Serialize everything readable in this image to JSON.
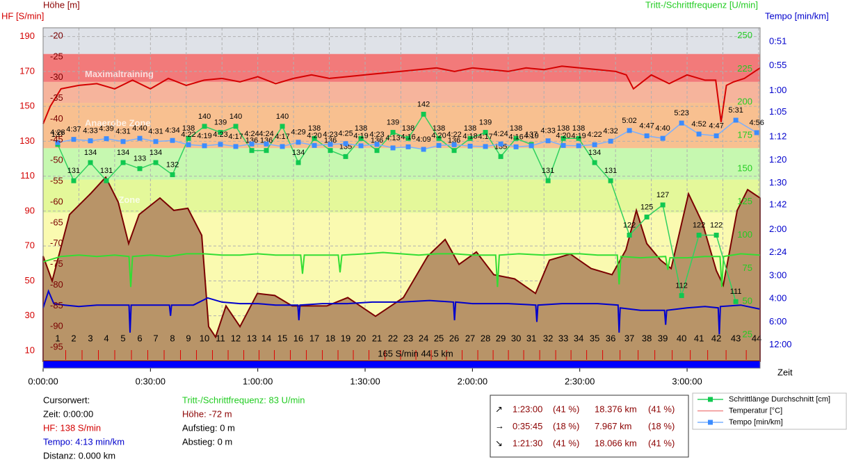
{
  "chart_data": {
    "type": "line",
    "xlabel": "Zeit",
    "xlim": [
      0,
      200.4
    ],
    "xticks": [
      {
        "value": 0,
        "label": "0:00:00"
      },
      {
        "value": 30,
        "label": "0:30:00"
      },
      {
        "value": 60,
        "label": "1:00:00"
      },
      {
        "value": 90,
        "label": "1:30:00"
      },
      {
        "value": 120,
        "label": "2:00:00"
      },
      {
        "value": 150,
        "label": "2:30:00"
      },
      {
        "value": 180,
        "label": "3:00:00"
      }
    ],
    "xgrid": [
      10,
      20,
      30,
      40,
      50,
      60,
      70,
      80,
      90,
      100,
      110,
      120,
      130,
      140,
      150,
      160,
      170,
      180,
      190,
      200
    ],
    "grid": true,
    "axes": {
      "hr": {
        "label": "HF [S/min]",
        "lim": [
          0,
          195
        ],
        "ticks": [
          10,
          30,
          50,
          70,
          90,
          110,
          130,
          150,
          170,
          190
        ],
        "color": "#d40000"
      },
      "elevation": {
        "label": "Höhe  [m]",
        "lim": [
          -100,
          -18
        ],
        "ticks": [
          -20,
          -25,
          -30,
          -35,
          -40,
          -45,
          -50,
          -55,
          -60,
          -65,
          -70,
          -75,
          -80,
          -85,
          -90,
          -95
        ],
        "color": "#7a0000"
      },
      "cadence": {
        "label": "Tritt-/Schrittfrequenz [U/min]",
        "lim": [
          0,
          256
        ],
        "ticks": [
          25,
          50,
          75,
          100,
          125,
          150,
          175,
          200,
          225,
          250
        ],
        "color": "#22cc22"
      },
      "pace": {
        "label": "Tempo [min/km]",
        "scale": "reciprocal",
        "top": 0.815,
        "color": "#0000cc",
        "ticks": [
          {
            "value": 0.85,
            "label": "0:51"
          },
          {
            "value": 0.9167,
            "label": "0:55"
          },
          {
            "value": 1,
            "label": "1:00"
          },
          {
            "value": 1.0833,
            "label": "1:05"
          },
          {
            "value": 1.2,
            "label": "1:12"
          },
          {
            "value": 1.3333,
            "label": "1:20"
          },
          {
            "value": 1.5,
            "label": "1:30"
          },
          {
            "value": 1.7,
            "label": "1:42"
          },
          {
            "value": 2,
            "label": "2:00"
          },
          {
            "value": 2.4,
            "label": "2:24"
          },
          {
            "value": 3,
            "label": "3:00"
          },
          {
            "value": 4,
            "label": "4:00"
          },
          {
            "value": 6,
            "label": "6:00"
          },
          {
            "value": 12,
            "label": "12:00"
          }
        ]
      }
    },
    "zones": [
      {
        "from": 180,
        "to": 195,
        "color": "#dfe2e8"
      },
      {
        "from": 164,
        "to": 180,
        "color": "#f27a7a",
        "name": "Maximaltraining"
      },
      {
        "from": 152,
        "to": 164,
        "color": "#f6b49c"
      },
      {
        "from": 126,
        "to": 152,
        "color": "#f8c090",
        "name": "Anaerobe Zone"
      },
      {
        "from": 108,
        "to": 126,
        "color": "#c6f8b0"
      },
      {
        "from": 89,
        "to": 108,
        "color": "#e4f89a",
        "name": "Aerobe Zone"
      },
      {
        "from": 0,
        "to": 89,
        "color": "#fafab0"
      }
    ],
    "series": [
      {
        "type": "area",
        "axis": "elevation",
        "color": "#b89468",
        "line": "#7a0000",
        "x": [
          0,
          2.53,
          7.39,
          13.22,
          17.5,
          21,
          23.91,
          26.83,
          32.66,
          36.55,
          40.44,
          44.33,
          46.27,
          48.21,
          51.13,
          55.02,
          59.88,
          64.74,
          69.6,
          79.32,
          85.15,
          92.92,
          100.7,
          107.5,
          112.36,
          116.25,
          121.11,
          125.97,
          131.81,
          137.64,
          141.52,
          147.36,
          153.19,
          159.02,
          162.91,
          165.82,
          168.74,
          172.63,
          175.54,
          180.4,
          184.29,
          188.18,
          190.12,
          194.01,
          196.93,
          200.4
        ],
        "values": [
          -73,
          -79,
          -63,
          -58,
          -54,
          -60,
          -70,
          -63,
          -59,
          -62,
          -61.5,
          -68,
          -90,
          -92.5,
          -85,
          -90,
          -82,
          -82.5,
          -85,
          -85,
          -83,
          -87.5,
          -83,
          -73,
          -69,
          -75,
          -72,
          -77.5,
          -78.5,
          -82,
          -74,
          -72.5,
          -76,
          -77.5,
          -71.5,
          -62,
          -70,
          -74,
          -76,
          -58,
          -65,
          -76.5,
          -80,
          -62,
          -57,
          -59
        ]
      },
      {
        "type": "line",
        "axis": "hr",
        "color": "#d40000",
        "x": [
          0,
          2,
          5,
          10,
          15,
          20,
          25,
          30,
          35,
          40,
          45,
          50,
          55,
          60,
          65,
          70,
          75,
          80,
          85,
          90,
          95,
          100,
          105,
          110,
          115,
          120,
          125,
          130,
          135,
          140,
          145,
          150,
          155,
          160,
          163,
          165,
          170,
          175,
          180,
          185,
          188,
          189.5,
          191,
          193,
          196,
          200.4
        ],
        "values": [
          140,
          150,
          160,
          162,
          163,
          160,
          165,
          160,
          166,
          162,
          165,
          166,
          164,
          167,
          163,
          166,
          168,
          166,
          167,
          168,
          169,
          170,
          171,
          172,
          170,
          172,
          171,
          170,
          172,
          171,
          173,
          172,
          171,
          170,
          168,
          160,
          168,
          163,
          168,
          165,
          165,
          141,
          162,
          164,
          166,
          172
        ]
      },
      {
        "type": "line",
        "axis": "cadence",
        "color": "#33dd33",
        "x": [
          0,
          5,
          10,
          15,
          20,
          24,
          24.5,
          25,
          30,
          35,
          40,
          45,
          50,
          55,
          60,
          65,
          70,
          72,
          72.5,
          73,
          78,
          82.5,
          83,
          83.5,
          90,
          95,
          100,
          105,
          110,
          115,
          120,
          126.5,
          127,
          127.5,
          133,
          140,
          145,
          150,
          155,
          160.5,
          161,
          161.5,
          167,
          174,
          174.6,
          175.2,
          180,
          185,
          189.2,
          189.7,
          190.2,
          195,
          200.4
        ],
        "values": [
          80,
          84,
          85,
          84,
          85,
          84,
          61,
          84,
          85,
          84,
          86,
          86,
          85,
          85,
          86,
          85,
          85,
          85,
          71,
          85,
          85,
          85,
          72,
          85,
          86,
          87,
          86,
          85,
          86,
          86,
          85,
          85,
          61,
          85,
          86,
          85,
          86,
          86,
          85,
          85,
          63,
          84,
          83,
          84,
          74,
          83,
          83,
          84,
          84,
          61,
          84,
          86,
          85
        ]
      },
      {
        "type": "line",
        "axis": "pace",
        "color": "#0000cc",
        "x": [
          0,
          1.5,
          3,
          6,
          10,
          15,
          20,
          24,
          24.3,
          24.6,
          30,
          35.3,
          35.6,
          35.9,
          42,
          46,
          50,
          55,
          60,
          65,
          71.2,
          71.5,
          71.8,
          78,
          85,
          92,
          100,
          108,
          114.7,
          115,
          115.3,
          120,
          130,
          137.7,
          138,
          138.3,
          145,
          150,
          155,
          160.7,
          161,
          161.3,
          167,
          173.7,
          174,
          174.3,
          180,
          185,
          188.7,
          189,
          189.3,
          195,
          200.4
        ],
        "values": [
          4.6,
          3.6,
          4.3,
          4.4,
          4.5,
          4.4,
          4.4,
          4.4,
          7.8,
          4.4,
          4.4,
          4.4,
          5.3,
          4.4,
          4.4,
          3.95,
          4.2,
          4.3,
          4.3,
          4.4,
          4.4,
          5.8,
          4.4,
          4.3,
          4.3,
          4.2,
          4.2,
          4.1,
          4.2,
          5.8,
          4.2,
          4.3,
          4.3,
          4.4,
          6.0,
          4.4,
          4.3,
          4.3,
          4.3,
          4.4,
          7.8,
          4.6,
          4.8,
          4.8,
          6.4,
          4.8,
          4.6,
          4.5,
          4.6,
          8.2,
          4.5,
          4.4,
          4.7
        ]
      }
    ],
    "laps": {
      "labels": [
        "1",
        "2",
        "3",
        "4",
        "5",
        "6",
        "7",
        "8",
        "9",
        "10",
        "11",
        "12",
        "13",
        "14",
        "15",
        "16",
        "17",
        "18",
        "19",
        "20",
        "21",
        "22",
        "23",
        "24",
        "25",
        "26",
        "27",
        "28",
        "29",
        "30",
        "31",
        "32",
        "33",
        "34",
        "35",
        "36",
        "37",
        "38",
        "39",
        "40",
        "41",
        "42",
        "43",
        "44"
      ],
      "x": [
        4.08,
        8.55,
        13.22,
        17.69,
        22.36,
        27.02,
        31.49,
        36.16,
        40.63,
        45.1,
        49.57,
        53.85,
        58.32,
        62.4,
        66.87,
        71.34,
        75.82,
        80.29,
        84.56,
        88.84,
        93.31,
        97.78,
        102.06,
        106.34,
        110.61,
        114.89,
        119.36,
        123.64,
        127.92,
        132.19,
        136.47,
        141.14,
        145.41,
        149.69,
        154.16,
        158.63,
        163.88,
        168.74,
        173.21,
        178.46,
        183.32,
        188.18,
        193.62,
        199.46
      ],
      "summary_text": "165 S/min 44.5 km",
      "series": [
        {
          "name": "Schrittlänge Durchschnitt [cm]",
          "color": "#10c850",
          "line": "#30d060",
          "lim": [
            100,
            156.3
          ],
          "values": [
            137,
            131,
            134,
            131,
            134,
            133,
            134,
            132,
            138,
            140,
            139,
            140,
            136,
            136,
            140,
            134,
            138,
            136,
            135,
            138,
            136,
            139,
            138,
            142,
            138,
            136,
            138,
            139,
            135,
            138,
            137,
            131,
            138,
            138,
            134,
            131,
            122,
            125,
            127,
            112,
            122,
            122,
            111,
            null
          ]
        },
        {
          "name": "Tempo [min/km]",
          "color": "#3c8cff",
          "line": "#7ab0ff",
          "lim": [
            -6.11,
            9.85
          ],
          "values": [
            4.467,
            4.617,
            4.55,
            4.65,
            4.517,
            4.667,
            4.517,
            4.567,
            4.367,
            4.317,
            4.383,
            4.283,
            4.4,
            4.4,
            4.283,
            4.483,
            4.333,
            4.383,
            4.417,
            4.317,
            4.383,
            4.217,
            4.267,
            4.15,
            4.333,
            4.367,
            4.3,
            4.283,
            4.4,
            4.267,
            4.317,
            4.55,
            4.333,
            4.317,
            4.367,
            4.533,
            5.033,
            4.783,
            4.667,
            5.383,
            4.867,
            4.783,
            5.517,
            4.933
          ],
          "value_labels": [
            "4:28",
            "4:37",
            "4:33",
            "4:39",
            "4:31",
            "4:40",
            "4:31",
            "4:34",
            "4:22",
            "4:19",
            "4:23",
            "4:17",
            "4:24",
            "4:24",
            "4:17",
            "4:29",
            "4:20",
            "4:23",
            "4:25",
            "4:19",
            "4:23",
            "4:13",
            "4:16",
            "4:09",
            "4:20",
            "4:22",
            "4:18",
            "4:17",
            "4:24",
            "4:16",
            "4:19",
            "4:33",
            "4:20",
            "4:19",
            "4:22",
            "4:32",
            "5:02",
            "4:47",
            "4:40",
            "5:23",
            "4:52",
            "4:47",
            "5:31",
            "4:56"
          ]
        }
      ]
    },
    "other_legend": [
      {
        "name": "Temperatur  [°C]",
        "color": "#f08a8a"
      }
    ]
  },
  "cursor": {
    "title": "Cursorwert:",
    "time": "Zeit: 0:00:00",
    "hr": "HF: 138 S/min",
    "pace": "Tempo: 4:13 min/km",
    "distance": "Distanz: 0.000 km",
    "cadence": "Tritt-/Schrittfrequenz: 83 U/min",
    "elevation": "Höhe:  -72 m",
    "ascent": "Aufstieg: 0 m",
    "descent": "Abstieg: 0 m"
  },
  "summary": {
    "rows": [
      [
        "1:23:00",
        "(41 %)",
        "18.376 km",
        "(41 %)"
      ],
      [
        "0:35:45",
        "(18 %)",
        "7.967 km",
        "(18 %)"
      ],
      [
        "1:21:30",
        "(41 %)",
        "18.066 km",
        "(41 %)"
      ]
    ]
  }
}
